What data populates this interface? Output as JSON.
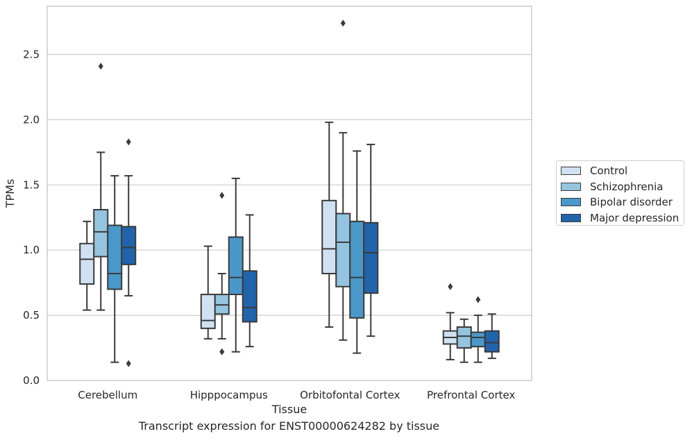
{
  "caption": "Transcript expression for ENST00000624282 by tissue",
  "chart_data": {
    "type": "boxplot",
    "xlabel": "Tissue",
    "ylabel": "TPMs",
    "ylim": [
      0,
      2.87
    ],
    "yticks": [
      "0.0",
      "0.5",
      "1.0",
      "1.5",
      "2.0",
      "2.5"
    ],
    "grid": "horizontal",
    "legend_position": "right-center",
    "categories": [
      "Cerebellum",
      "Hipppocampus",
      "Orbitofontal Cortex",
      "Prefrontal Cortex"
    ],
    "series": [
      {
        "name": "Control",
        "color": "#d0e1f2",
        "boxes": [
          {
            "whisker_low": 0.54,
            "q1": 0.74,
            "median": 0.93,
            "q3": 1.05,
            "whisker_high": 1.22,
            "outliers": []
          },
          {
            "whisker_low": 0.32,
            "q1": 0.4,
            "median": 0.46,
            "q3": 0.66,
            "whisker_high": 1.03,
            "outliers": []
          },
          {
            "whisker_low": 0.41,
            "q1": 0.82,
            "median": 1.01,
            "q3": 1.38,
            "whisker_high": 1.98,
            "outliers": []
          },
          {
            "whisker_low": 0.16,
            "q1": 0.28,
            "median": 0.33,
            "q3": 0.38,
            "whisker_high": 0.52,
            "outliers": [
              0.72
            ]
          }
        ]
      },
      {
        "name": "Schizophrenia",
        "color": "#94c4df",
        "boxes": [
          {
            "whisker_low": 0.54,
            "q1": 0.95,
            "median": 1.14,
            "q3": 1.31,
            "whisker_high": 1.75,
            "outliers": [
              2.41
            ]
          },
          {
            "whisker_low": 0.32,
            "q1": 0.51,
            "median": 0.58,
            "q3": 0.66,
            "whisker_high": 0.82,
            "outliers": [
              1.42,
              0.22
            ]
          },
          {
            "whisker_low": 0.31,
            "q1": 0.72,
            "median": 1.06,
            "q3": 1.28,
            "whisker_high": 1.9,
            "outliers": [
              2.74
            ]
          },
          {
            "whisker_low": 0.14,
            "q1": 0.25,
            "median": 0.34,
            "q3": 0.41,
            "whisker_high": 0.47,
            "outliers": []
          }
        ]
      },
      {
        "name": "Bipolar disorder",
        "color": "#4a98c9",
        "boxes": [
          {
            "whisker_low": 0.14,
            "q1": 0.7,
            "median": 0.82,
            "q3": 1.19,
            "whisker_high": 1.57,
            "outliers": []
          },
          {
            "whisker_low": 0.22,
            "q1": 0.66,
            "median": 0.79,
            "q3": 1.1,
            "whisker_high": 1.55,
            "outliers": []
          },
          {
            "whisker_low": 0.21,
            "q1": 0.48,
            "median": 0.79,
            "q3": 1.22,
            "whisker_high": 1.76,
            "outliers": []
          },
          {
            "whisker_low": 0.14,
            "q1": 0.26,
            "median": 0.33,
            "q3": 0.37,
            "whisker_high": 0.5,
            "outliers": [
              0.62
            ]
          }
        ]
      },
      {
        "name": "Major depression",
        "color": "#2164ab",
        "boxes": [
          {
            "whisker_low": 0.65,
            "q1": 0.89,
            "median": 1.02,
            "q3": 1.18,
            "whisker_high": 1.57,
            "outliers": [
              1.83,
              0.13
            ]
          },
          {
            "whisker_low": 0.26,
            "q1": 0.45,
            "median": 0.56,
            "q3": 0.84,
            "whisker_high": 1.27,
            "outliers": []
          },
          {
            "whisker_low": 0.34,
            "q1": 0.67,
            "median": 0.98,
            "q3": 1.21,
            "whisker_high": 1.81,
            "outliers": []
          },
          {
            "whisker_low": 0.17,
            "q1": 0.22,
            "median": 0.29,
            "q3": 0.38,
            "whisker_high": 0.51,
            "outliers": []
          }
        ]
      }
    ]
  }
}
